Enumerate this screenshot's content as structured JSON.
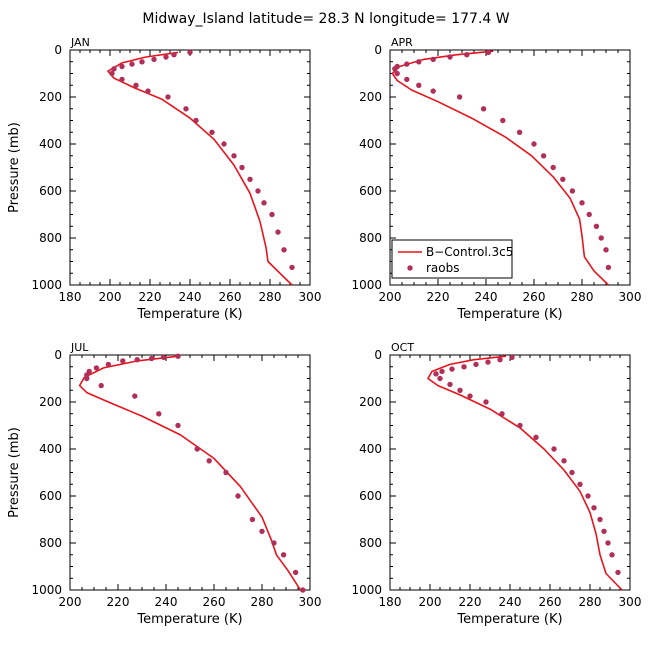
{
  "figure": {
    "title": "Midway_Island   latitude= 28.3 N longitude= 177.4 W",
    "model_color": "#e8141c",
    "obs_color": "#b0305a"
  },
  "legend": {
    "model_label": "B−Control.3c5",
    "obs_label": "raobs",
    "panel": "APR"
  },
  "chart_data": [
    {
      "type": "line",
      "panel": "JAN",
      "title": "JAN",
      "xlabel": "Temperature (K)",
      "ylabel": "Pressure (mb)",
      "xlim": [
        180,
        300
      ],
      "ylim": [
        1000,
        0
      ],
      "xticks": [
        180,
        200,
        220,
        240,
        260,
        280,
        300
      ],
      "yticks": [
        0,
        200,
        400,
        600,
        800,
        1000
      ],
      "series": [
        {
          "name": "B−Control.3c5",
          "style": "line",
          "x": [
            234,
            218,
            206,
            199,
            202,
            212,
            226,
            240,
            252,
            262,
            270,
            275,
            278,
            279,
            285,
            291
          ],
          "y": [
            10,
            30,
            55,
            90,
            120,
            160,
            210,
            290,
            380,
            490,
            610,
            730,
            840,
            900,
            950,
            1000
          ]
        },
        {
          "name": "raobs",
          "style": "scatter",
          "x": [
            240,
            232,
            228,
            222,
            216,
            211,
            206,
            202,
            201,
            206,
            213,
            219,
            229,
            238,
            243,
            251,
            257,
            262,
            266,
            270,
            274,
            277,
            281,
            284,
            287,
            291
          ],
          "y": [
            10,
            20,
            30,
            40,
            50,
            60,
            70,
            80,
            100,
            125,
            150,
            175,
            200,
            250,
            300,
            350,
            400,
            450,
            500,
            550,
            600,
            650,
            700,
            775,
            850,
            925
          ]
        }
      ]
    },
    {
      "type": "line",
      "panel": "APR",
      "title": "APR",
      "xlabel": "Temperature (K)",
      "ylabel": "",
      "xlim": [
        200,
        300
      ],
      "ylim": [
        1000,
        0
      ],
      "xticks": [
        200,
        220,
        240,
        260,
        280,
        300
      ],
      "yticks": [
        0,
        200,
        400,
        600,
        800,
        1000
      ],
      "series": [
        {
          "name": "B−Control.3c5",
          "style": "line",
          "x": [
            243,
            228,
            214,
            204,
            201,
            203,
            209,
            220,
            234,
            248,
            259,
            268,
            275,
            279,
            280,
            281,
            285,
            291
          ],
          "y": [
            5,
            20,
            40,
            70,
            100,
            130,
            170,
            220,
            290,
            370,
            450,
            540,
            630,
            720,
            790,
            880,
            940,
            1000
          ]
        },
        {
          "name": "raobs",
          "style": "scatter",
          "x": [
            241,
            232,
            225,
            218,
            212,
            207,
            203,
            202,
            203,
            207,
            212,
            218,
            229,
            239,
            247,
            254,
            260,
            264,
            268,
            272,
            276,
            280,
            283,
            286,
            288,
            290,
            291
          ],
          "y": [
            10,
            20,
            30,
            40,
            50,
            60,
            70,
            80,
            100,
            125,
            150,
            175,
            200,
            250,
            300,
            350,
            400,
            450,
            500,
            550,
            600,
            650,
            700,
            750,
            800,
            850,
            925
          ]
        }
      ]
    },
    {
      "type": "line",
      "panel": "JUL",
      "title": "JUL",
      "xlabel": "Temperature (K)",
      "ylabel": "Pressure (mb)",
      "xlim": [
        200,
        300
      ],
      "ylim": [
        1000,
        0
      ],
      "xticks": [
        200,
        220,
        240,
        260,
        280,
        300
      ],
      "yticks": [
        0,
        200,
        400,
        600,
        800,
        1000
      ],
      "series": [
        {
          "name": "B−Control.3c5",
          "style": "line",
          "x": [
            245,
            228,
            214,
            206,
            204,
            207,
            216,
            230,
            246,
            260,
            271,
            280,
            284,
            286,
            291,
            296
          ],
          "y": [
            5,
            25,
            55,
            95,
            130,
            160,
            200,
            260,
            340,
            440,
            560,
            690,
            790,
            850,
            920,
            1000
          ]
        },
        {
          "name": "raobs",
          "style": "scatter",
          "x": [
            245,
            239,
            234,
            228,
            222,
            216,
            211,
            208,
            207,
            207,
            213,
            227,
            237,
            245,
            253,
            258,
            265,
            270,
            276,
            280,
            285,
            289,
            294,
            297
          ],
          "y": [
            5,
            10,
            15,
            20,
            25,
            40,
            55,
            70,
            85,
            100,
            130,
            175,
            250,
            300,
            400,
            450,
            500,
            600,
            700,
            750,
            800,
            850,
            925,
            1000
          ]
        }
      ]
    },
    {
      "type": "line",
      "panel": "OCT",
      "title": "OCT",
      "xlabel": "Temperature (K)",
      "ylabel": "",
      "xlim": [
        180,
        300
      ],
      "ylim": [
        1000,
        0
      ],
      "xticks": [
        180,
        200,
        220,
        240,
        260,
        280,
        300
      ],
      "yticks": [
        0,
        200,
        400,
        600,
        800,
        1000
      ],
      "series": [
        {
          "name": "B−Control.3c5",
          "style": "line",
          "x": [
            238,
            222,
            210,
            201,
            199,
            204,
            215,
            230,
            245,
            257,
            267,
            275,
            280,
            283,
            285,
            288,
            296
          ],
          "y": [
            5,
            20,
            40,
            70,
            100,
            130,
            170,
            230,
            310,
            400,
            490,
            580,
            670,
            760,
            850,
            930,
            1000
          ]
        },
        {
          "name": "raobs",
          "style": "scatter",
          "x": [
            241,
            235,
            229,
            223,
            217,
            211,
            206,
            203,
            205,
            210,
            215,
            220,
            228,
            236,
            245,
            253,
            262,
            267,
            271,
            275,
            279,
            282,
            285,
            287,
            289,
            291,
            294
          ],
          "y": [
            10,
            20,
            30,
            40,
            50,
            60,
            70,
            80,
            100,
            125,
            150,
            175,
            200,
            250,
            300,
            350,
            400,
            450,
            500,
            550,
            600,
            650,
            700,
            750,
            800,
            850,
            925
          ]
        }
      ]
    }
  ]
}
